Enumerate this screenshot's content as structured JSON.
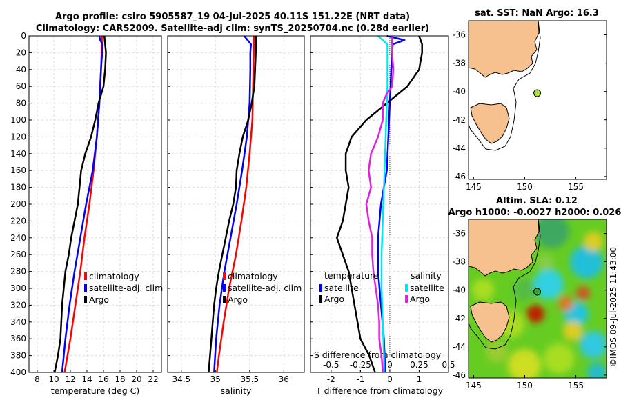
{
  "header": {
    "title_line1": "Argo profile: csiro 5905587_19 04-Jul-2025 40.11S 151.22E (NRT data)",
    "title_line2": "Climatology: CARS2009. Satellite-adj clim: synTS_20250704.nc (0.28d earlier)"
  },
  "colors": {
    "argo": "#000000",
    "climatology": "#ff0000",
    "satellite_adj": "#0000ff",
    "salinity_satellite": "#00e5ee",
    "salinity_argo": "#e020e0",
    "land": "#f7c08f",
    "ocean": "#ffffff",
    "frame": "#000000"
  },
  "chart_data": [
    {
      "type": "line",
      "id": "temperature",
      "xlabel": "temperature (deg C)",
      "ylabel": "",
      "xlim": [
        7,
        23
      ],
      "ylim": [
        400,
        0
      ],
      "xticks": [
        8,
        10,
        12,
        14,
        16,
        18,
        20,
        22
      ],
      "yticks": [
        0,
        20,
        40,
        60,
        80,
        100,
        120,
        140,
        160,
        180,
        200,
        220,
        240,
        260,
        280,
        300,
        320,
        340,
        360,
        380,
        400
      ],
      "grid": true,
      "legend": [
        "climatology",
        "satellite-adj. clim",
        "Argo"
      ],
      "series": [
        {
          "name": "climatology",
          "color": "#ff0000",
          "depth": [
            0,
            10,
            40,
            80,
            120,
            160,
            200,
            240,
            280,
            320,
            360,
            400
          ],
          "values": [
            15.8,
            15.8,
            15.7,
            15.5,
            15.2,
            14.8,
            14.3,
            13.7,
            13.2,
            12.6,
            12.0,
            11.3
          ]
        },
        {
          "name": "satellite-adj. clim",
          "color": "#0000ff",
          "depth": [
            0,
            5,
            10,
            40,
            80,
            120,
            160,
            200,
            240,
            280,
            320,
            360,
            400
          ],
          "values": [
            15.5,
            15.6,
            15.9,
            15.7,
            15.5,
            15.2,
            14.7,
            13.9,
            13.2,
            12.5,
            11.9,
            11.4,
            11.0
          ]
        },
        {
          "name": "Argo",
          "color": "#000000",
          "depth": [
            0,
            10,
            20,
            40,
            60,
            80,
            100,
            120,
            140,
            160,
            180,
            200,
            220,
            240,
            260,
            280,
            300,
            320,
            340,
            360,
            380,
            400
          ],
          "values": [
            16.1,
            16.2,
            16.3,
            16.2,
            16.0,
            15.4,
            15.0,
            14.5,
            13.8,
            13.3,
            13.1,
            12.9,
            12.5,
            12.1,
            11.8,
            11.4,
            11.2,
            11.0,
            10.9,
            10.8,
            10.5,
            10.1
          ]
        }
      ]
    },
    {
      "type": "line",
      "id": "salinity",
      "xlabel": "salinity",
      "ylabel": "",
      "xlim": [
        34.3,
        36.3
      ],
      "ylim": [
        400,
        0
      ],
      "xticks": [
        34.5,
        35,
        35.5,
        36
      ],
      "xticklabels": [
        "34.5",
        "35",
        "35.5",
        "36"
      ],
      "grid": true,
      "legend": [
        "climatology",
        "satellite-adj. clim",
        "Argo"
      ],
      "series": [
        {
          "name": "climatology",
          "color": "#ff0000",
          "depth": [
            0,
            20,
            60,
            100,
            140,
            180,
            220,
            260,
            300,
            340,
            380,
            400
          ],
          "values": [
            35.56,
            35.56,
            35.55,
            35.54,
            35.5,
            35.45,
            35.38,
            35.3,
            35.2,
            35.12,
            35.05,
            35.02
          ]
        },
        {
          "name": "satellite-adj. clim",
          "color": "#0000ff",
          "depth": [
            0,
            10,
            20,
            40,
            80,
            120,
            160,
            200,
            240,
            280,
            320,
            360,
            400
          ],
          "values": [
            35.42,
            35.52,
            35.51,
            35.51,
            35.5,
            35.46,
            35.39,
            35.31,
            35.22,
            35.13,
            35.06,
            35.01,
            34.98
          ]
        },
        {
          "name": "Argo",
          "color": "#000000",
          "depth": [
            0,
            20,
            40,
            60,
            80,
            100,
            120,
            140,
            160,
            180,
            200,
            220,
            240,
            260,
            280,
            300,
            320,
            340,
            360,
            380,
            400
          ],
          "values": [
            35.59,
            35.59,
            35.58,
            35.57,
            35.53,
            35.48,
            35.4,
            35.35,
            35.31,
            35.3,
            35.26,
            35.2,
            35.15,
            35.1,
            35.05,
            35.01,
            34.98,
            34.96,
            34.94,
            34.92,
            34.9
          ]
        }
      ]
    },
    {
      "type": "line",
      "id": "difference",
      "xlabel": "T difference from climatology",
      "xlabel_top": "S difference from climatology",
      "xlim": [
        -2.7,
        2.0
      ],
      "ylim": [
        400,
        0
      ],
      "xticks": [
        -2,
        -1,
        0,
        1
      ],
      "xticklabels": [
        "-2",
        "-1",
        "0",
        "1"
      ],
      "top_xticks": [
        -0.5,
        -0.25,
        0,
        0.25,
        0.5
      ],
      "top_xticklabels": [
        "-0.5",
        "-0.25",
        "0",
        "0.25",
        "0.5"
      ],
      "grid": true,
      "legend_titles": [
        "temperature",
        "salinity"
      ],
      "legend": [
        "satellite",
        "Argo",
        "satellite",
        "Argo"
      ],
      "series": [
        {
          "name": "temperature satellite",
          "color": "#0000ff",
          "depth": [
            0,
            5,
            10,
            40,
            80,
            120,
            160,
            200,
            240,
            280,
            320,
            360,
            400
          ],
          "values": [
            -0.1,
            0.5,
            0.1,
            0.05,
            0.0,
            -0.05,
            -0.1,
            -0.3,
            -0.4,
            -0.4,
            -0.3,
            -0.2,
            -0.15
          ]
        },
        {
          "name": "temperature Argo",
          "color": "#000000",
          "depth": [
            0,
            10,
            20,
            40,
            60,
            80,
            100,
            120,
            140,
            160,
            180,
            200,
            220,
            240,
            260,
            280,
            300,
            320,
            340,
            360,
            380,
            400
          ],
          "values": [
            1.0,
            1.1,
            1.1,
            1.0,
            0.6,
            -0.1,
            -0.8,
            -1.3,
            -1.5,
            -1.5,
            -1.4,
            -1.5,
            -1.6,
            -1.8,
            -1.6,
            -1.4,
            -1.3,
            -1.2,
            -1.1,
            -1.0,
            -0.7,
            -0.5
          ]
        },
        {
          "name": "salinity satellite",
          "color": "#00e5ee",
          "depth": [
            0,
            10,
            20,
            60,
            100,
            140,
            180,
            220,
            260,
            300,
            340,
            380,
            400
          ],
          "values": [
            -0.1,
            -0.02,
            -0.02,
            -0.02,
            -0.03,
            -0.04,
            -0.05,
            -0.06,
            -0.07,
            -0.07,
            -0.06,
            -0.05,
            -0.05
          ]
        },
        {
          "name": "salinity Argo",
          "color": "#e020e0",
          "depth": [
            0,
            20,
            40,
            60,
            70,
            80,
            100,
            120,
            140,
            160,
            180,
            200,
            220,
            240,
            260,
            280,
            300,
            320,
            340,
            360,
            380,
            400
          ],
          "values": [
            0.02,
            0.02,
            0.03,
            0.02,
            -0.03,
            -0.06,
            -0.06,
            -0.1,
            -0.16,
            -0.18,
            -0.16,
            -0.2,
            -0.18,
            -0.15,
            -0.15,
            -0.14,
            -0.12,
            -0.1,
            -0.09,
            -0.09,
            -0.07,
            -0.06
          ]
        }
      ]
    },
    {
      "type": "scatter",
      "id": "sst_map",
      "title": "sat. SST: NaN Argo: 16.3",
      "xlim": [
        144.5,
        158
      ],
      "ylim": [
        -46.2,
        -35
      ],
      "xticks": [
        145,
        150,
        155
      ],
      "yticks": [
        -36,
        -38,
        -40,
        -42,
        -44,
        -46
      ],
      "points": [
        {
          "lon": 151.22,
          "lat": -40.11,
          "color": "#aadd33"
        }
      ]
    },
    {
      "type": "heatmap",
      "id": "sla_map",
      "title_line1": "Altim. SLA: 0.12",
      "title_line2": "Argo h1000: -0.0027 h2000: 0.026",
      "xlim": [
        144.5,
        158
      ],
      "ylim": [
        -46.2,
        -35
      ],
      "xticks": [
        145,
        150,
        155
      ],
      "yticks": [
        -36,
        -38,
        -40,
        -42,
        -44,
        -46
      ],
      "points": [
        {
          "lon": 151.22,
          "lat": -40.11,
          "color": "#33aa33"
        }
      ]
    }
  ],
  "watermark": "©IMOS 09-Jul-2025 11:43:00"
}
